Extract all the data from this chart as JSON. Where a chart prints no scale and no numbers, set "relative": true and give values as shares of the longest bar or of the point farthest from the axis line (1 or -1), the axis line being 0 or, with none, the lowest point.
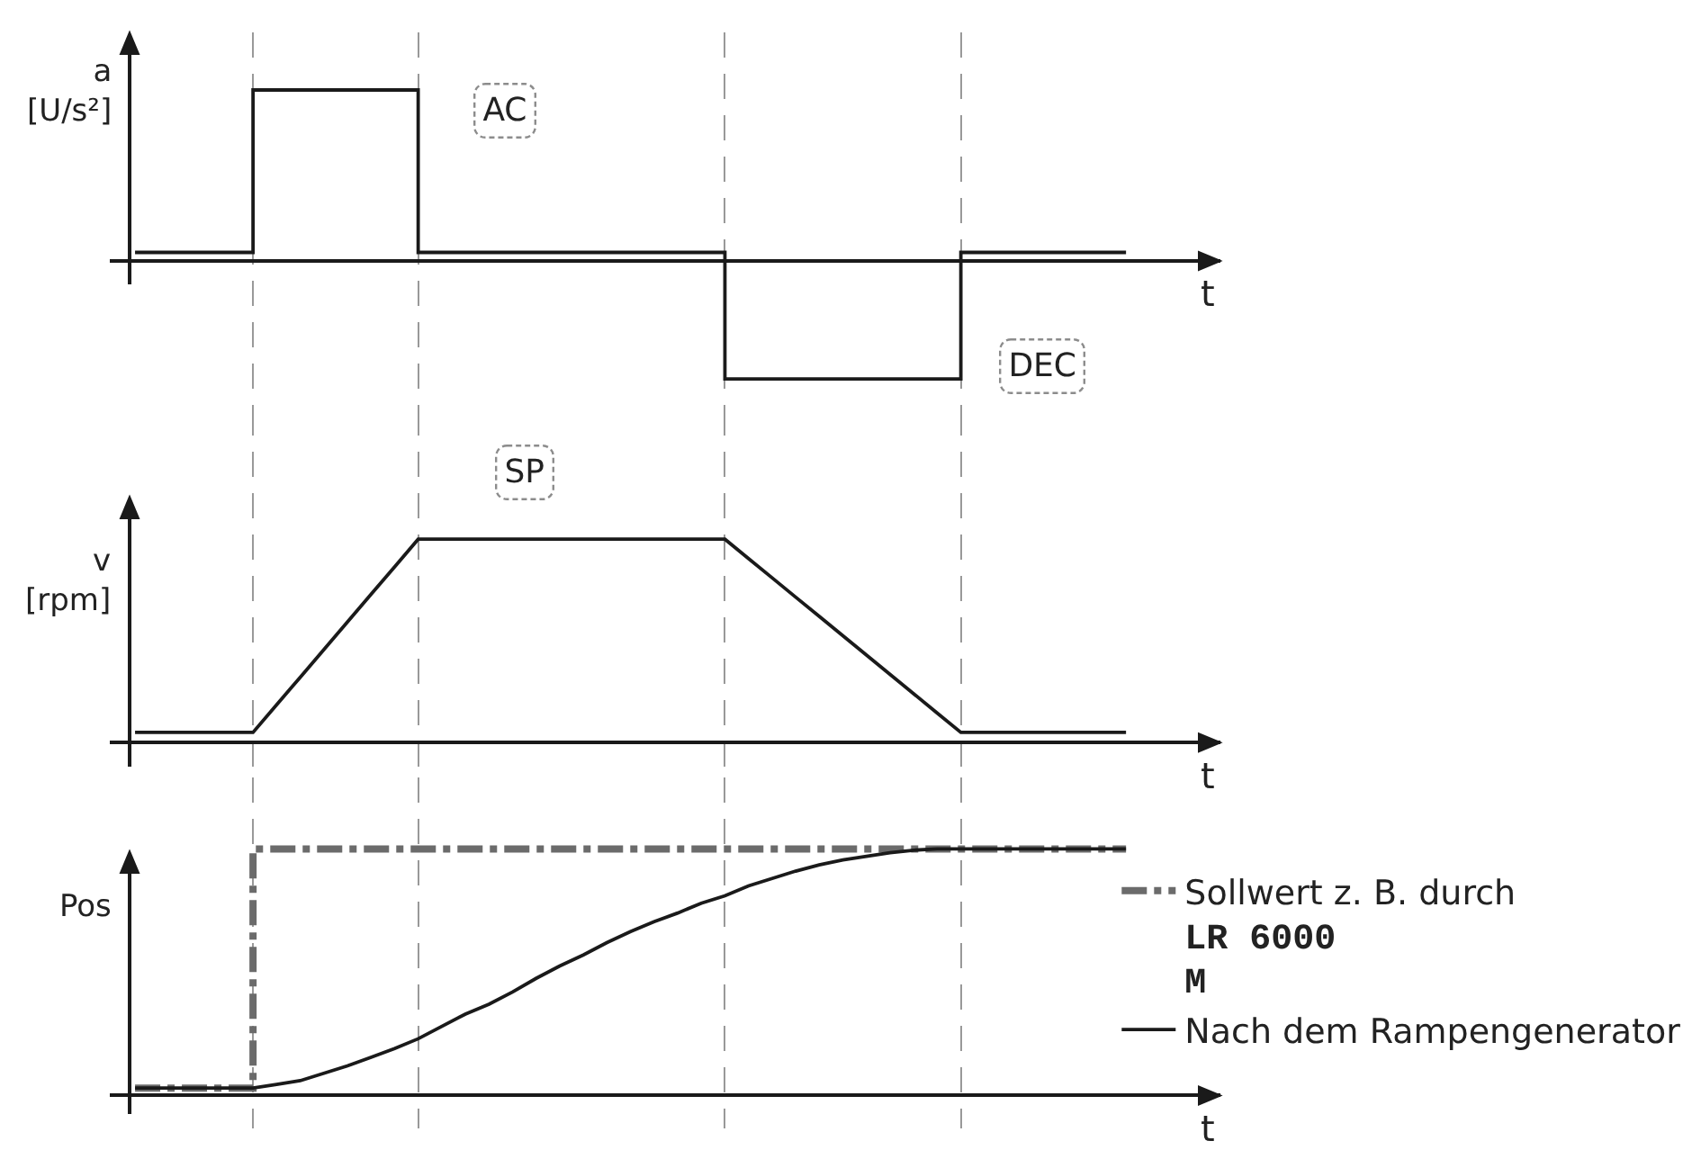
{
  "chart_data": [
    {
      "type": "step",
      "relative": true,
      "xlabel": "t",
      "ylabel": "a\n[U/s²]",
      "grid": "x",
      "color": "#1a1a1a",
      "categories": [
        null,
        null,
        null,
        null,
        null,
        null,
        null,
        null,
        null,
        null,
        null,
        null,
        null,
        null,
        null,
        null,
        null,
        null,
        null,
        null,
        null,
        null,
        null,
        null,
        null,
        null,
        null,
        null,
        null,
        null,
        null,
        null,
        null,
        null,
        null,
        null,
        null,
        null,
        null,
        null,
        null,
        null,
        null
      ],
      "values": [
        0.05,
        0.05,
        0.05,
        0.05,
        0.05,
        1,
        1,
        1,
        1,
        1,
        1,
        1,
        0.05,
        0.05,
        0.05,
        0.05,
        0.05,
        0.05,
        0.05,
        0.05,
        0.05,
        0.05,
        0.05,
        0.05,
        0.05,
        -0.69,
        -0.69,
        -0.69,
        -0.69,
        -0.69,
        -0.69,
        -0.69,
        -0.69,
        -0.69,
        -0.69,
        0.05,
        0.05,
        0.05,
        0.05,
        0.05,
        0.05,
        0.05,
        0.05
      ],
      "annotations": [
        "AC",
        "DEC"
      ]
    },
    {
      "type": "line",
      "relative": true,
      "xlabel": "t",
      "ylabel": "v\n[rpm]",
      "grid": "x",
      "color": "#1a1a1a",
      "categories": [
        null,
        null,
        null,
        null,
        null,
        null,
        null,
        null,
        null,
        null,
        null,
        null,
        null,
        null,
        null,
        null,
        null,
        null,
        null,
        null,
        null,
        null,
        null,
        null,
        null,
        null,
        null,
        null,
        null,
        null,
        null,
        null,
        null,
        null,
        null,
        null,
        null,
        null,
        null,
        null,
        null,
        null,
        null
      ],
      "values": [
        0.05,
        0.05,
        0.05,
        0.05,
        0.05,
        0.05,
        0.186,
        0.321,
        0.457,
        0.593,
        0.729,
        0.864,
        1,
        1,
        1,
        1,
        1,
        1,
        1,
        1,
        1,
        1,
        1,
        1,
        1,
        1,
        0.905,
        0.81,
        0.715,
        0.62,
        0.525,
        0.43,
        0.335,
        0.24,
        0.145,
        0.05,
        0.05,
        0.05,
        0.05,
        0.05,
        0.05,
        0.05,
        0.05
      ],
      "annotations": [
        "SP"
      ]
    },
    {
      "type": "line",
      "relative": true,
      "xlabel": "t",
      "ylabel": "Pos",
      "grid": "x",
      "legend": "right",
      "categories": [
        null,
        null,
        null,
        null,
        null,
        null,
        null,
        null,
        null,
        null,
        null,
        null,
        null,
        null,
        null,
        null,
        null,
        null,
        null,
        null,
        null,
        null,
        null,
        null,
        null,
        null,
        null,
        null,
        null,
        null,
        null,
        null,
        null,
        null,
        null,
        null,
        null,
        null,
        null,
        null,
        null,
        null,
        null
      ],
      "series": [
        {
          "name": "Sollwert z. B. durch\nLR 6000\nM",
          "type": "step",
          "color": "#6b6b6b",
          "line_style": "dashdot",
          "values": [
            0.03,
            0.03,
            0.03,
            0.03,
            0.03,
            1,
            1,
            1,
            1,
            1,
            1,
            1,
            1,
            1,
            1,
            1,
            1,
            1,
            1,
            1,
            1,
            1,
            1,
            1,
            1,
            1,
            1,
            1,
            1,
            1,
            1,
            1,
            1,
            1,
            1,
            1,
            1,
            1,
            1,
            1,
            1,
            1,
            1
          ]
        },
        {
          "name": "Nach dem Rampengenerator",
          "color": "#1a1a1a",
          "values": [
            0.03,
            0.03,
            0.03,
            0.03,
            0.03,
            0.03,
            0.045,
            0.06,
            0.09,
            0.12,
            0.155,
            0.19,
            0.23,
            0.28,
            0.33,
            0.37,
            0.42,
            0.475,
            0.525,
            0.57,
            0.62,
            0.665,
            0.705,
            0.74,
            0.78,
            0.81,
            0.85,
            0.88,
            0.91,
            0.935,
            0.955,
            0.97,
            0.985,
            0.995,
            1,
            1,
            1,
            1,
            1,
            1,
            1,
            1,
            1
          ]
        }
      ]
    }
  ]
}
